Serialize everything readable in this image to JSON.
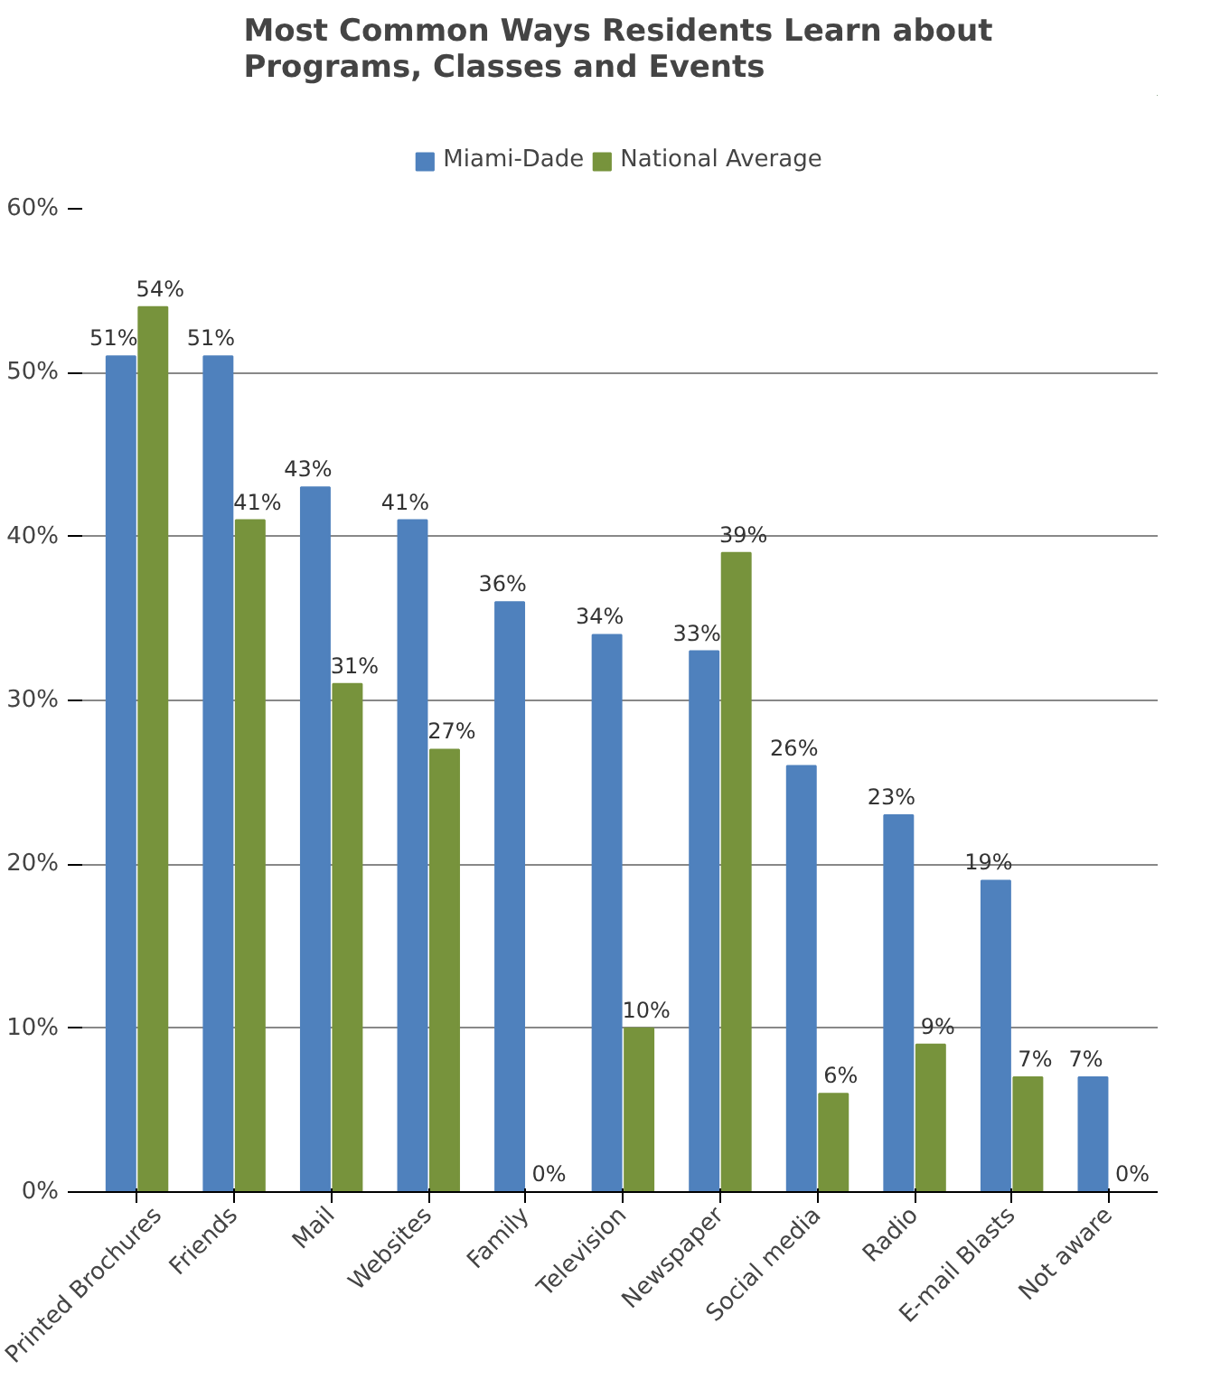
{
  "chart_data": {
    "type": "bar",
    "title": "Most Common Ways Residents Learn about Programs, Classes and Events",
    "categories": [
      "Printed Brochures",
      "Friends",
      "Mail",
      "Websites",
      "Family",
      "Television",
      "Newspaper",
      "Social media",
      "Radio",
      "E-mail Blasts",
      "Not aware"
    ],
    "series": [
      {
        "name": "Miami-Dade",
        "color": "#4f81bd",
        "values": [
          51,
          51,
          43,
          41,
          36,
          34,
          33,
          26,
          23,
          19,
          7
        ],
        "value_labels": [
          "51%",
          "51%",
          "43%",
          "41%",
          "36%",
          "34%",
          "33%",
          "26%",
          "23%",
          "19%",
          "7%"
        ]
      },
      {
        "name": "National Average",
        "color": "#77933c",
        "values": [
          54,
          41,
          31,
          27,
          0,
          10,
          39,
          6,
          9,
          7,
          0
        ],
        "value_labels": [
          "54%",
          "41%",
          "31%",
          "27%",
          "0%",
          "10%",
          "39%",
          "6%",
          "9%",
          "7%",
          "0%"
        ]
      }
    ],
    "ylim": [
      0,
      60
    ],
    "yticks": [
      {
        "value": 0,
        "label": "0%"
      },
      {
        "value": 10,
        "label": "10%"
      },
      {
        "value": 20,
        "label": "20%"
      },
      {
        "value": 30,
        "label": "30%"
      },
      {
        "value": 40,
        "label": "40%"
      },
      {
        "value": 50,
        "label": "50%"
      },
      {
        "value": 60,
        "label": "60%"
      }
    ],
    "grid": "y",
    "legend": "top"
  }
}
